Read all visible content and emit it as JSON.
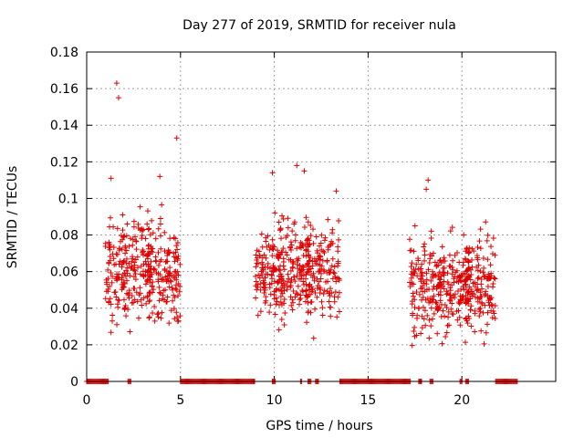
{
  "chart_data": {
    "type": "scatter",
    "title": "Day 277 of 2019, SRMTID for receiver nula",
    "xlabel": "GPS time / hours",
    "ylabel": "SRMTID / TECUs",
    "xlim": [
      0,
      25
    ],
    "ylim": [
      0,
      0.18
    ],
    "xticks": [
      0,
      5,
      10,
      15,
      20
    ],
    "xtick_labels": [
      "0",
      "5",
      "10",
      "15",
      "20"
    ],
    "yticks": [
      0,
      0.02,
      0.04,
      0.06,
      0.08,
      0.1,
      0.12,
      0.14,
      0.16,
      0.18
    ],
    "ytick_labels": [
      "0",
      "0.02",
      "0.04",
      "0.06",
      "0.08",
      "0.1",
      "0.12",
      "0.14",
      "0.16",
      "0.18"
    ],
    "grid": true,
    "marker": "+",
    "color": "#e00000",
    "clusters": [
      {
        "t_start": 1.0,
        "t_end": 5.0,
        "peaks": [
          [
            1.6,
            0.163
          ],
          [
            1.7,
            0.155
          ],
          [
            4.8,
            0.133
          ],
          [
            3.9,
            0.112
          ],
          [
            1.3,
            0.111
          ]
        ],
        "typical": [
          0.02,
          0.1
        ]
      },
      {
        "t_start": 9.0,
        "t_end": 13.5,
        "peaks": [
          [
            11.2,
            0.118
          ],
          [
            11.6,
            0.115
          ],
          [
            9.9,
            0.114
          ],
          [
            13.3,
            0.104
          ]
        ],
        "typical": [
          0.02,
          0.1
        ]
      },
      {
        "t_start": 17.2,
        "t_end": 21.8,
        "peaks": [
          [
            18.2,
            0.11
          ],
          [
            18.1,
            0.105
          ],
          [
            17.5,
            0.085
          ]
        ],
        "typical": [
          0.015,
          0.09
        ]
      }
    ],
    "zero_segments": [
      [
        0.0,
        1.2
      ],
      [
        2.2,
        2.35
      ],
      [
        5.0,
        9.0
      ],
      [
        9.9,
        10.1
      ],
      [
        11.4,
        11.5
      ],
      [
        11.8,
        12.0
      ],
      [
        12.2,
        12.4
      ],
      [
        13.5,
        17.3
      ],
      [
        17.7,
        17.9
      ],
      [
        18.3,
        18.5
      ],
      [
        19.9,
        20.0
      ],
      [
        20.2,
        20.4
      ],
      [
        21.8,
        23.0
      ]
    ]
  }
}
